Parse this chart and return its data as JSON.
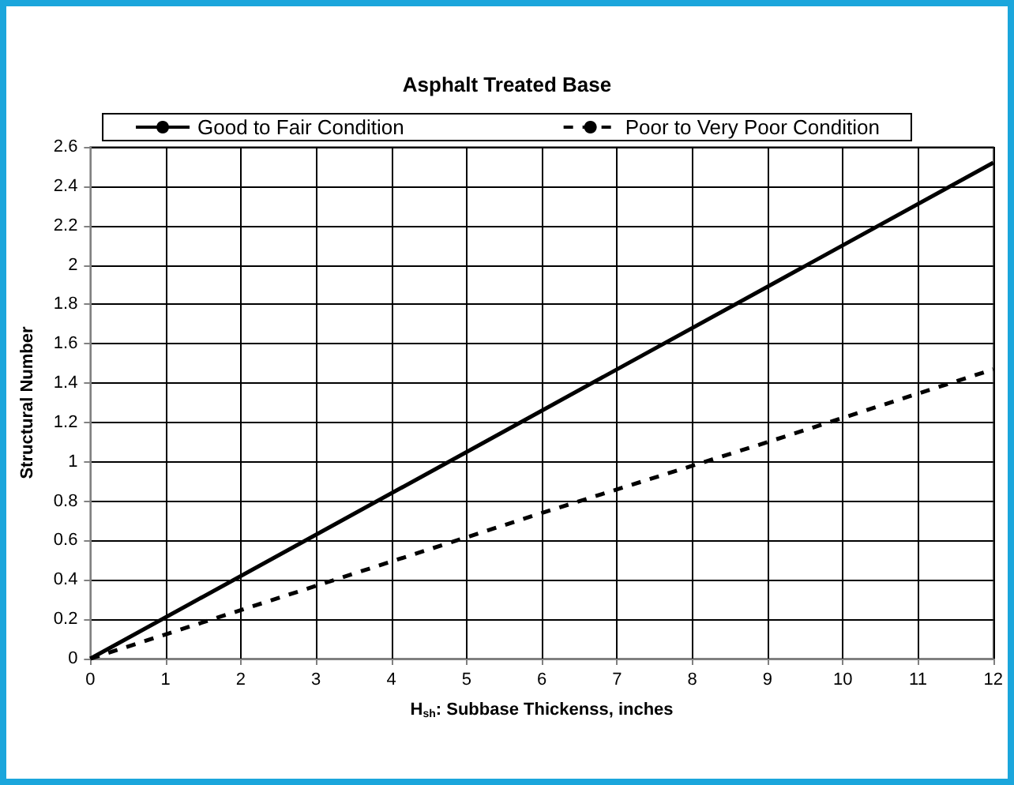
{
  "chart_data": {
    "type": "line",
    "title": "Asphalt Treated Base",
    "xlabel": "H$_{sh}$: Subbase Thickenss, inches",
    "ylabel": "Structural Number",
    "x": [
      0,
      3,
      6,
      9,
      12
    ],
    "series": [
      {
        "name": "Good to Fair Condition",
        "color": "#000000",
        "values": [
          0,
          0.63,
          1.26,
          1.89,
          2.52
        ],
        "line_style": "solid"
      },
      {
        "name": "Poor to Very Poor Condition",
        "color": "#000000",
        "values": [
          0,
          0.37,
          0.74,
          1.1,
          1.47
        ],
        "line_style": "dashed"
      }
    ],
    "xlim": [
      0,
      12
    ],
    "xticks": [
      0,
      1,
      2,
      3,
      4,
      5,
      6,
      7,
      8,
      9,
      10,
      11,
      12
    ],
    "ylim": [
      0,
      2.6
    ],
    "yticks": [
      0,
      0.2,
      0.4,
      0.6,
      0.8,
      1,
      1.2,
      1.4,
      1.6,
      1.8,
      2,
      2.2,
      2.4,
      2.6
    ],
    "grid": true,
    "legend": "top",
    "marker": "none"
  }
}
